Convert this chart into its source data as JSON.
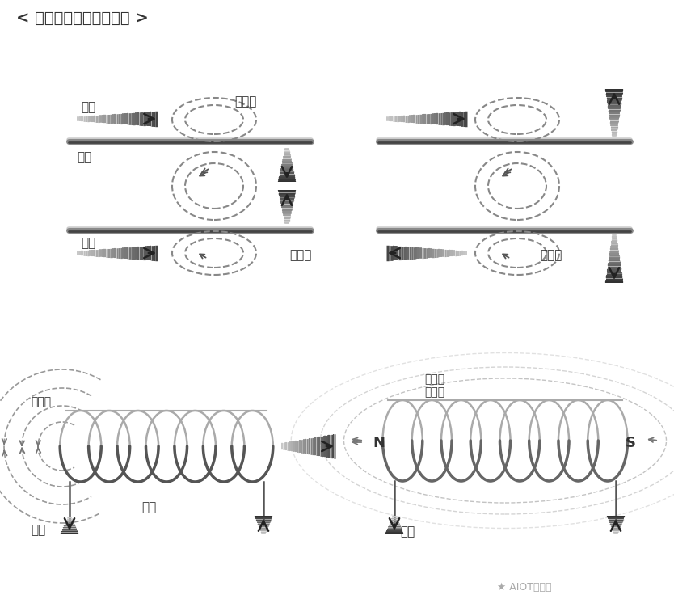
{
  "title": "< 施加在平行导线上的力 >",
  "bg_color": "#ffffff",
  "tc": "#333333",
  "label_left_top_current": "电流",
  "label_left_wire": "导线",
  "label_left_bot_current": "电流",
  "label_field_line": "磁力线",
  "label_attraction": "吸引力",
  "label_repulsion": "排斥力",
  "label_coil_field": "磁力线",
  "label_coil_name": "线圈",
  "label_coil_current": "电流",
  "label_combined": "合成的\n磁力线",
  "label_N": "N",
  "label_S": "S",
  "label_sol_current": "电流",
  "watermark": "★ AIOT大数据"
}
